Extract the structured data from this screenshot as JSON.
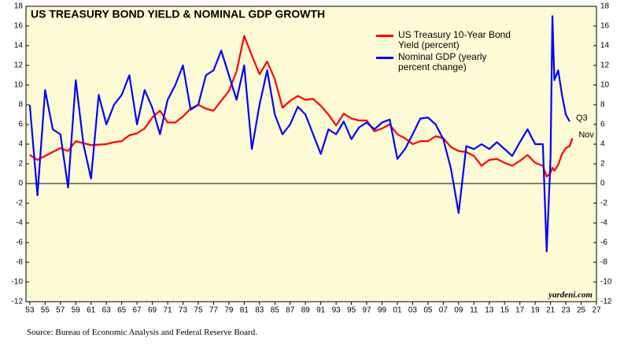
{
  "chart_data": {
    "type": "line",
    "title": "US TREASURY BOND YIELD & NOMINAL GDP GROWTH",
    "source": "Source: Bureau of Economic Analysis and Federal Reserve Board.",
    "credit": "yardeni.com",
    "annotations": [
      {
        "text": "Q3",
        "x": 2023.5,
        "y": 6.3,
        "color": "#0000ff"
      },
      {
        "text": "Nov",
        "x": 2023.85,
        "y": 4.6,
        "color": "#ff0000"
      }
    ],
    "x": [
      1953,
      1954,
      1955,
      1956,
      1957,
      1958,
      1959,
      1960,
      1961,
      1962,
      1963,
      1964,
      1965,
      1966,
      1967,
      1968,
      1969,
      1970,
      1971,
      1972,
      1973,
      1974,
      1975,
      1976,
      1977,
      1978,
      1979,
      1980,
      1981,
      1982,
      1983,
      1984,
      1985,
      1986,
      1987,
      1988,
      1989,
      1990,
      1991,
      1992,
      1993,
      1994,
      1995,
      1996,
      1997,
      1998,
      1999,
      2000,
      2001,
      2002,
      2003,
      2004,
      2005,
      2006,
      2007,
      2008,
      2009,
      2010,
      2011,
      2012,
      2013,
      2014,
      2015,
      2016,
      2017,
      2018,
      2019,
      2020,
      2020.5,
      2021,
      2021.25,
      2021.5,
      2022,
      2022.5,
      2023,
      2023.5,
      2023.85
    ],
    "series": [
      {
        "name": "US Treasury 10-Year Bond Yield (percent)",
        "color": "#ff0000",
        "values": [
          2.9,
          2.4,
          2.8,
          3.2,
          3.6,
          3.3,
          4.3,
          4.1,
          3.9,
          3.95,
          4.0,
          4.2,
          4.3,
          4.9,
          5.1,
          5.6,
          6.7,
          7.4,
          6.2,
          6.2,
          6.8,
          7.6,
          8.0,
          7.6,
          7.4,
          8.4,
          9.4,
          11.4,
          15.0,
          13.0,
          11.1,
          12.4,
          10.6,
          7.7,
          8.4,
          8.9,
          8.5,
          8.6,
          7.9,
          7.0,
          5.9,
          7.1,
          6.6,
          6.4,
          6.4,
          5.3,
          5.6,
          6.0,
          5.0,
          4.6,
          4.0,
          4.3,
          4.3,
          4.8,
          4.6,
          3.7,
          3.3,
          3.2,
          2.8,
          1.8,
          2.4,
          2.5,
          2.1,
          1.8,
          2.3,
          2.9,
          2.1,
          1.8,
          0.7,
          1.1,
          1.6,
          1.3,
          1.9,
          3.0,
          3.6,
          3.8,
          4.6
        ]
      },
      {
        "name": "Nominal GDP (yearly percent change)",
        "color": "#0000ff",
        "values": [
          8,
          -1.2,
          9.5,
          5.5,
          5,
          -0.4,
          10.5,
          4,
          0.5,
          9,
          6,
          8,
          9,
          11,
          6,
          9.5,
          7.7,
          5,
          8.5,
          10,
          12,
          7.5,
          8,
          11,
          11.5,
          13.5,
          11,
          8.5,
          12,
          3.5,
          8,
          11.5,
          7,
          5,
          6,
          7.8,
          7,
          5,
          3,
          5.5,
          5,
          6.3,
          4.5,
          5.7,
          6.2,
          5.5,
          6.2,
          6.5,
          2.5,
          3.5,
          5,
          6.6,
          6.7,
          6,
          4.5,
          1.5,
          -3,
          3.8,
          3.5,
          4,
          3.5,
          4.2,
          3.5,
          2.8,
          4.2,
          5.5,
          4,
          4.0,
          -6.9,
          2.5,
          17.0,
          10.5,
          11.5,
          9.0,
          7.0,
          6.3,
          null
        ]
      }
    ],
    "xlim": [
      1952.5,
      2027
    ],
    "ylim": [
      -12,
      18
    ],
    "xticks": [
      {
        "value": 1953,
        "label": "53"
      },
      {
        "value": 1955,
        "label": "55"
      },
      {
        "value": 1957,
        "label": "57"
      },
      {
        "value": 1959,
        "label": "59"
      },
      {
        "value": 1961,
        "label": "61"
      },
      {
        "value": 1963,
        "label": "63"
      },
      {
        "value": 1965,
        "label": "65"
      },
      {
        "value": 1967,
        "label": "67"
      },
      {
        "value": 1969,
        "label": "69"
      },
      {
        "value": 1971,
        "label": "71"
      },
      {
        "value": 1973,
        "label": "73"
      },
      {
        "value": 1975,
        "label": "75"
      },
      {
        "value": 1977,
        "label": "77"
      },
      {
        "value": 1979,
        "label": "79"
      },
      {
        "value": 1981,
        "label": "81"
      },
      {
        "value": 1983,
        "label": "83"
      },
      {
        "value": 1985,
        "label": "85"
      },
      {
        "value": 1987,
        "label": "87"
      },
      {
        "value": 1989,
        "label": "89"
      },
      {
        "value": 1991,
        "label": "91"
      },
      {
        "value": 1993,
        "label": "93"
      },
      {
        "value": 1995,
        "label": "95"
      },
      {
        "value": 1997,
        "label": "97"
      },
      {
        "value": 1999,
        "label": "99"
      },
      {
        "value": 2001,
        "label": "01"
      },
      {
        "value": 2003,
        "label": "03"
      },
      {
        "value": 2005,
        "label": "05"
      },
      {
        "value": 2007,
        "label": "07"
      },
      {
        "value": 2009,
        "label": "09"
      },
      {
        "value": 2011,
        "label": "11"
      },
      {
        "value": 2013,
        "label": "13"
      },
      {
        "value": 2015,
        "label": "15"
      },
      {
        "value": 2017,
        "label": "17"
      },
      {
        "value": 2019,
        "label": "19"
      },
      {
        "value": 2021,
        "label": "21"
      },
      {
        "value": 2023,
        "label": "23"
      },
      {
        "value": 2025,
        "label": "25"
      },
      {
        "value": 2027,
        "label": "27"
      }
    ],
    "yticks": [
      -12,
      -10,
      -8,
      -6,
      -4,
      -2,
      0,
      2,
      4,
      6,
      8,
      10,
      12,
      14,
      16,
      18
    ],
    "y2lim": [
      -12,
      18
    ],
    "y2ticks": [
      -12,
      -10,
      -8,
      -6,
      -4,
      -2,
      0,
      2,
      4,
      6,
      8,
      10,
      12,
      14,
      16,
      18
    ],
    "legend": "upper right",
    "background": "#fdfbd6"
  }
}
